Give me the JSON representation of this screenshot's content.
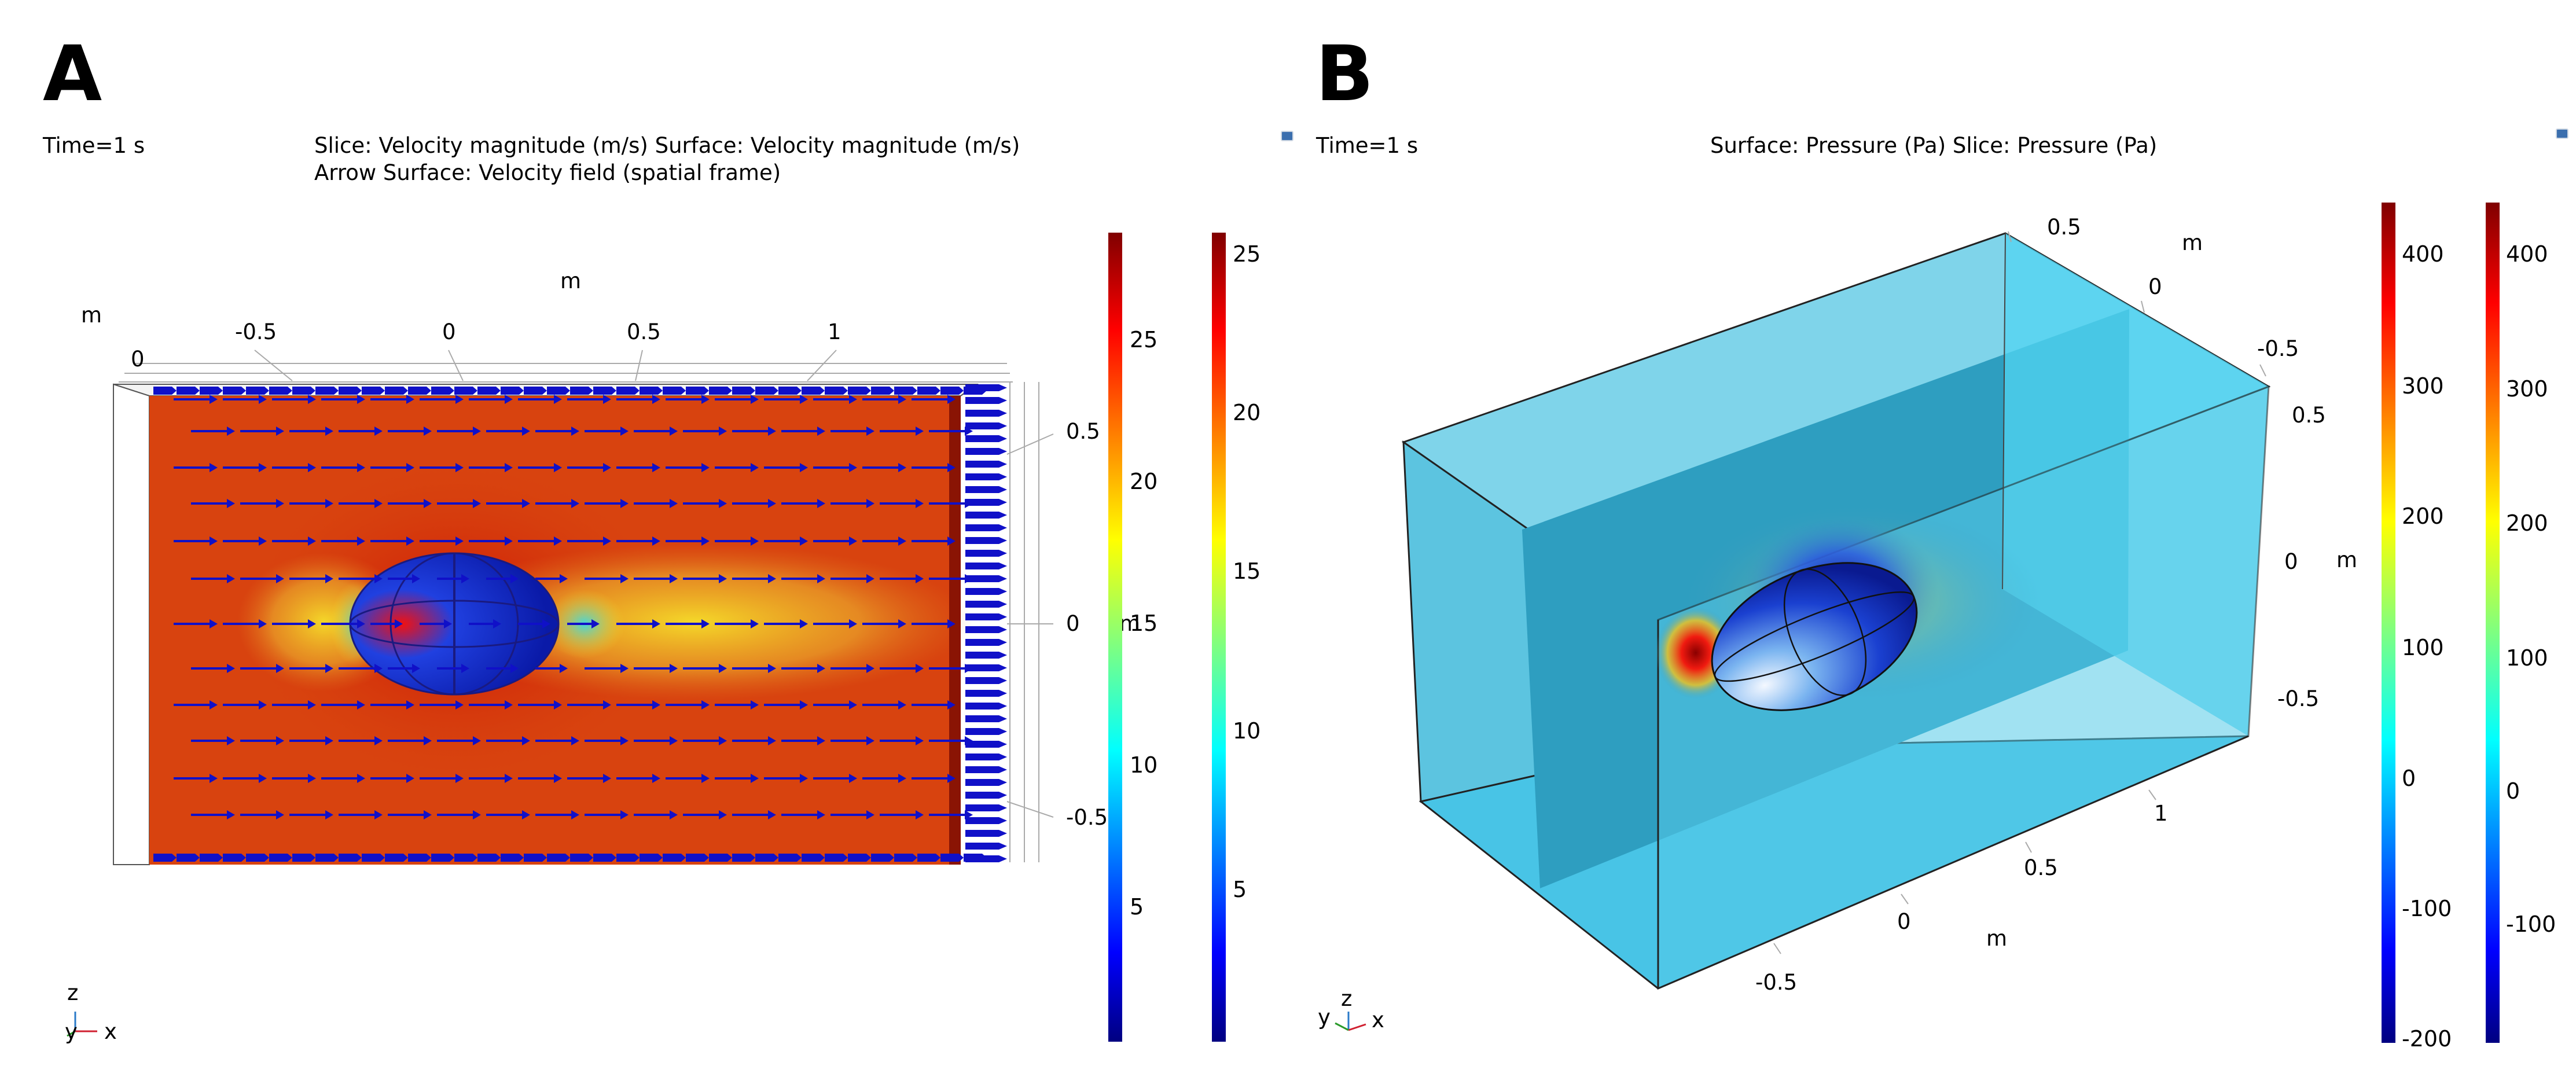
{
  "panel_a": {
    "letter": "A",
    "time_label": "Time=1 s",
    "plot_title_line1": "Slice: Velocity magnitude (m/s)  Surface: Velocity magnitude (m/s)",
    "plot_title_line2": "Arrow Surface: Velocity field (spatial frame)",
    "axis_unit_top": "m",
    "axis_unit_left": "m",
    "axis_unit_right": "m",
    "x_ticks": [
      "-0.5",
      "0",
      "0.5",
      "1"
    ],
    "left_tick": "0",
    "z_ticks": [
      "0.5",
      "0",
      "-0.5"
    ],
    "colorbar_1_ticks": [
      "25",
      "20",
      "15",
      "10",
      "5"
    ],
    "colorbar_2_ticks": [
      "25",
      "20",
      "15",
      "10",
      "5"
    ],
    "triad": {
      "up": "z",
      "left": "y",
      "right": "x"
    }
  },
  "panel_b": {
    "letter": "B",
    "time_label": "Time=1 s",
    "plot_title": "Surface: Pressure (Pa)  Slice: Pressure (Pa)",
    "axis_unit_top": "m",
    "axis_unit_right": "m",
    "axis_unit_bottom": "m",
    "y_ticks_top": [
      "0.5",
      "0",
      "-0.5"
    ],
    "z_ticks_right": [
      "0.5",
      "0",
      "-0.5"
    ],
    "x_ticks_bottom": [
      "1",
      "0.5",
      "0",
      "-0.5"
    ],
    "colorbar_1_ticks": [
      "400",
      "300",
      "200",
      "100",
      "0",
      "-100",
      "-200"
    ],
    "colorbar_2_ticks": [
      "400",
      "300",
      "200",
      "100",
      "0",
      "-100"
    ],
    "triad": {
      "up": "z",
      "left": "y",
      "right": "x"
    }
  },
  "colors": {
    "arrow": "#1010c8",
    "box_fill": "#49c6e6",
    "jet": [
      "#000080",
      "#0000ff",
      "#00ffff",
      "#ffff00",
      "#ff0000",
      "#800000"
    ]
  }
}
